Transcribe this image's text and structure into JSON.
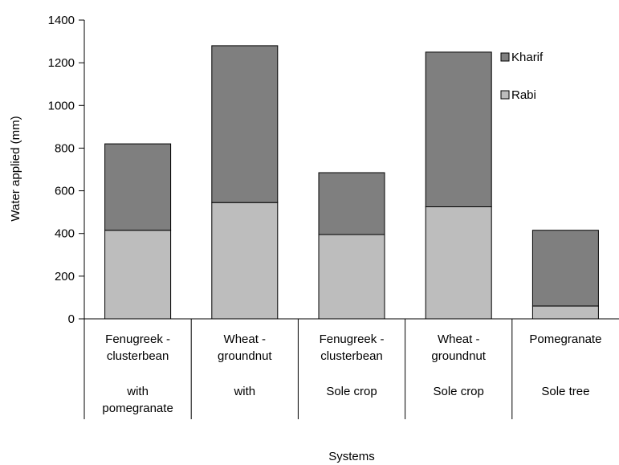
{
  "chart_data": {
    "type": "bar",
    "stacked": true,
    "categories": [
      [
        "Fenugreek -",
        "clusterbean",
        "with",
        "pomegranate"
      ],
      [
        "Wheat -",
        "groundnut",
        "with"
      ],
      [
        "Fenugreek -",
        "clusterbean",
        "Sole crop"
      ],
      [
        "Wheat -",
        "groundnut",
        "Sole crop"
      ],
      [
        "Pomegranate",
        "Sole tree"
      ]
    ],
    "series": [
      {
        "name": "Rabi",
        "color": "#bdbdbd",
        "values": [
          415,
          545,
          395,
          525,
          60
        ]
      },
      {
        "name": "Kharif",
        "color": "#7f7f7f",
        "values": [
          405,
          735,
          290,
          725,
          355
        ]
      }
    ],
    "legend_order": [
      "Kharif",
      "Rabi"
    ],
    "legend_position": "top-right",
    "xlabel": "Systems",
    "ylabel": "Water applied (mm)",
    "ylim": [
      0,
      1400
    ],
    "yticks": [
      "0",
      "200",
      "400",
      "600",
      "800",
      "1000",
      "1200",
      "1400"
    ],
    "grid": false
  }
}
